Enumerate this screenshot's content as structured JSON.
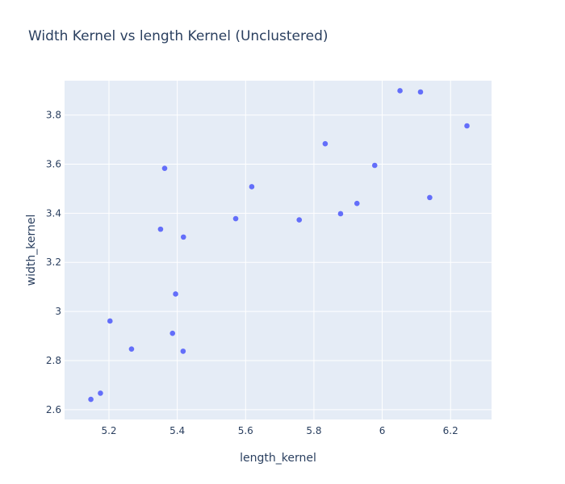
{
  "chart_data": {
    "type": "scatter",
    "title": "Width Kernel vs length Kernel (Unclustered)",
    "xlabel": "length_kernel",
    "ylabel": "width_kernel",
    "xlim": [
      5.07,
      6.32
    ],
    "ylim": [
      2.56,
      3.94
    ],
    "xticks": [
      5.2,
      5.4,
      5.6,
      5.8,
      6.0,
      6.2
    ],
    "xtick_labels": [
      "5.2",
      "5.4",
      "5.6",
      "5.8",
      "6",
      "6.2"
    ],
    "yticks": [
      2.6,
      2.8,
      3.0,
      3.2,
      3.4,
      3.6,
      3.8
    ],
    "ytick_labels": [
      "2.6",
      "2.8",
      "3",
      "3.2",
      "3.4",
      "3.6",
      "3.8"
    ],
    "grid": true,
    "legend": false,
    "series": [
      {
        "x": [
          5.147,
          5.175,
          5.203,
          5.266,
          5.351,
          5.363,
          5.386,
          5.395,
          5.418,
          5.417,
          5.571,
          5.618,
          5.757,
          5.833,
          5.878,
          5.926,
          5.978,
          6.052,
          6.112,
          6.139,
          6.248
        ],
        "y": [
          2.642,
          2.667,
          2.961,
          2.847,
          3.335,
          3.583,
          2.911,
          3.071,
          3.303,
          2.838,
          3.378,
          3.508,
          3.373,
          3.683,
          3.398,
          3.44,
          3.595,
          3.899,
          3.894,
          3.464,
          3.756
        ]
      }
    ]
  },
  "colors": {
    "marker": "#636efa",
    "plot_bg": "#e5ecf6",
    "grid": "#ffffff",
    "text": "#2a3f5f"
  }
}
